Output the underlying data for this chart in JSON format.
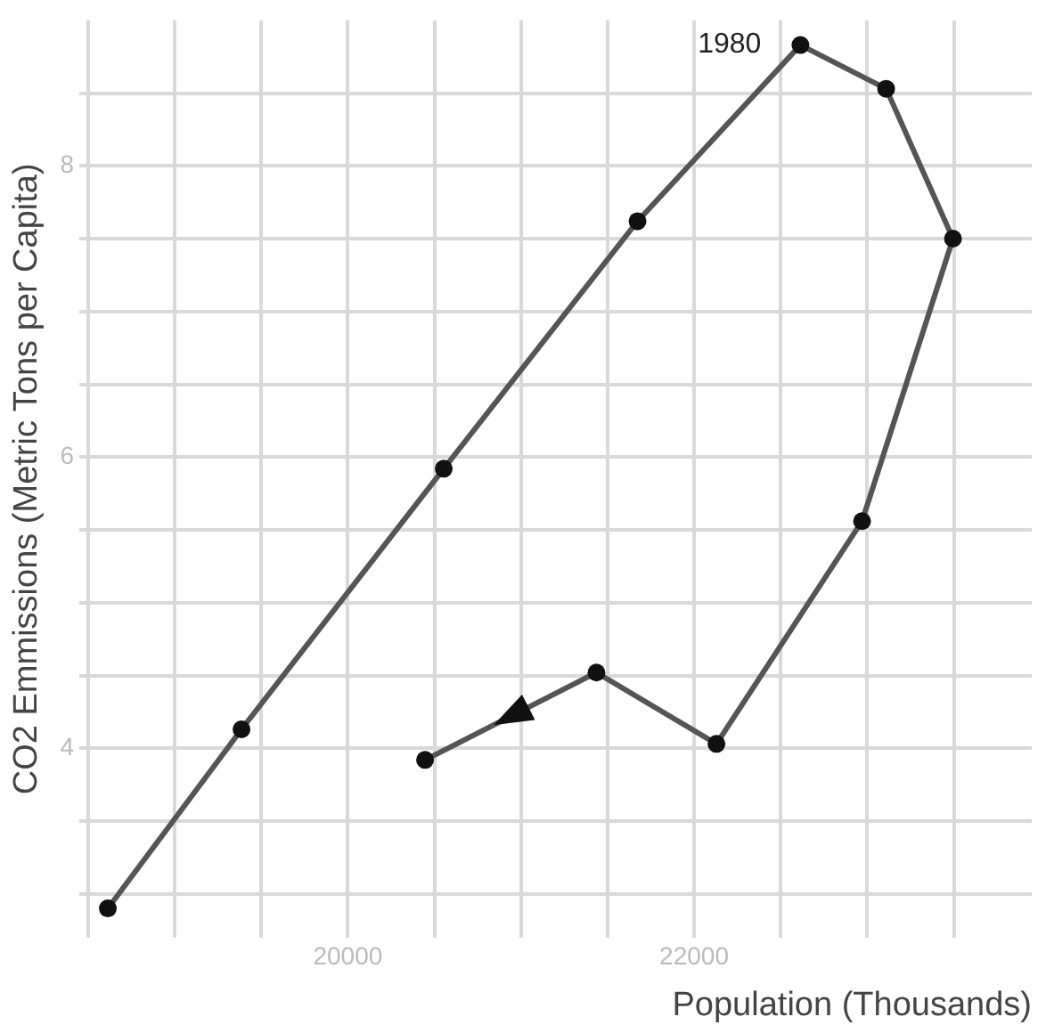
{
  "chart_data": {
    "type": "line",
    "xlabel": "Population (Thousands)",
    "ylabel": "CO2 Emmissions (Metric Tons per Capita)",
    "x": [
      18614,
      19386,
      20554,
      21673,
      22614,
      23109,
      23495,
      22970,
      22129,
      21436,
      20446
    ],
    "series": [
      {
        "color": "#555555",
        "values": [
          2.9,
          4.13,
          5.92,
          7.62,
          8.83,
          8.53,
          7.5,
          5.56,
          4.03,
          4.52,
          3.92
        ]
      }
    ],
    "xlim": [
      18450,
      23950
    ],
    "xticks": [
      {
        "value": 18500,
        "label": null
      },
      {
        "value": 19000,
        "label": null
      },
      {
        "value": 19500,
        "label": null
      },
      20000,
      {
        "value": 20500,
        "label": null
      },
      {
        "value": 21000,
        "label": null
      },
      {
        "value": 21500,
        "label": null
      },
      22000,
      {
        "value": 22500,
        "label": null
      },
      {
        "value": 23000,
        "label": null
      },
      {
        "value": 23500,
        "label": null
      }
    ],
    "ylim": [
      2.7,
      9.0
    ],
    "yticks": [
      {
        "value": 3,
        "label": null
      },
      {
        "value": 3.5,
        "label": null
      },
      4,
      {
        "value": 4.5,
        "label": null
      },
      {
        "value": 5,
        "label": null
      },
      {
        "value": 5.5,
        "label": null
      },
      6,
      {
        "value": 6.5,
        "label": null
      },
      {
        "value": 7,
        "label": null
      },
      {
        "value": 7.5,
        "label": null
      },
      8,
      {
        "value": 8.5,
        "label": null
      }
    ],
    "annotations": [
      {
        "text": "1980",
        "x": 22614,
        "y": 8.83
      }
    ],
    "grid": true,
    "legend": false,
    "marker": "circle",
    "line_style": "solid"
  }
}
